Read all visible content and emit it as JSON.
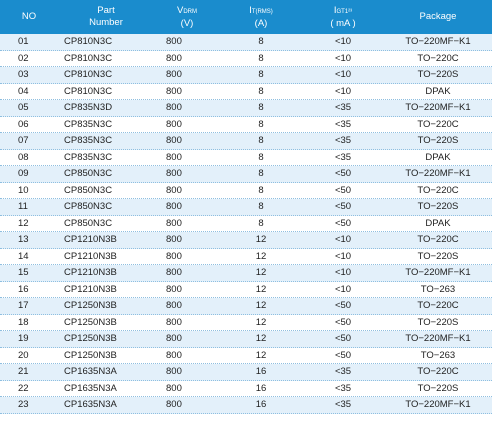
{
  "colors": {
    "header_bg": "#1a8ccd",
    "header_text": "#ffffff",
    "alt_row_bg": "#e3f0fa",
    "divider": "#8fbfe0"
  },
  "header": {
    "no": "NO",
    "part_line1": "Part",
    "part_line2": "Number",
    "vdrm_main": "V",
    "vdrm_sub": "DRM",
    "vdrm_unit": "(V)",
    "it_main": "I",
    "it_sub": "T(RMS)",
    "it_unit": "(A)",
    "igt_main": "I",
    "igt_sub": "GT1²³",
    "igt_unit": "( mA )",
    "package": "Package"
  },
  "rows": [
    {
      "no": "01",
      "part": "CP810N3C",
      "vdrm": "800",
      "it": "8",
      "igt": "<10",
      "pkg": "TO−220MF−K1"
    },
    {
      "no": "02",
      "part": "CP810N3C",
      "vdrm": "800",
      "it": "8",
      "igt": "<10",
      "pkg": "TO−220C"
    },
    {
      "no": "03",
      "part": "CP810N3C",
      "vdrm": "800",
      "it": "8",
      "igt": "<10",
      "pkg": "TO−220S"
    },
    {
      "no": "04",
      "part": "CP810N3C",
      "vdrm": "800",
      "it": "8",
      "igt": "<10",
      "pkg": "DPAK"
    },
    {
      "no": "05",
      "part": "CP835N3D",
      "vdrm": "800",
      "it": "8",
      "igt": "<35",
      "pkg": "TO−220MF−K1"
    },
    {
      "no": "06",
      "part": "CP835N3C",
      "vdrm": "800",
      "it": "8",
      "igt": "<35",
      "pkg": "TO−220C"
    },
    {
      "no": "07",
      "part": "CP835N3C",
      "vdrm": "800",
      "it": "8",
      "igt": "<35",
      "pkg": "TO−220S"
    },
    {
      "no": "08",
      "part": "CP835N3C",
      "vdrm": "800",
      "it": "8",
      "igt": "<35",
      "pkg": "DPAK"
    },
    {
      "no": "09",
      "part": "CP850N3C",
      "vdrm": "800",
      "it": "8",
      "igt": "<50",
      "pkg": "TO−220MF−K1"
    },
    {
      "no": "10",
      "part": "CP850N3C",
      "vdrm": "800",
      "it": "8",
      "igt": "<50",
      "pkg": "TO−220C"
    },
    {
      "no": "11",
      "part": "CP850N3C",
      "vdrm": "800",
      "it": "8",
      "igt": "<50",
      "pkg": "TO−220S"
    },
    {
      "no": "12",
      "part": "CP850N3C",
      "vdrm": "800",
      "it": "8",
      "igt": "<50",
      "pkg": "DPAK"
    },
    {
      "no": "13",
      "part": "CP1210N3B",
      "vdrm": "800",
      "it": "12",
      "igt": "<10",
      "pkg": "TO−220C"
    },
    {
      "no": "14",
      "part": "CP1210N3B",
      "vdrm": "800",
      "it": "12",
      "igt": "<10",
      "pkg": "TO−220S"
    },
    {
      "no": "15",
      "part": "CP1210N3B",
      "vdrm": "800",
      "it": "12",
      "igt": "<10",
      "pkg": "TO−220MF−K1"
    },
    {
      "no": "16",
      "part": "CP1210N3B",
      "vdrm": "800",
      "it": "12",
      "igt": "<10",
      "pkg": "TO−263"
    },
    {
      "no": "17",
      "part": "CP1250N3B",
      "vdrm": "800",
      "it": "12",
      "igt": "<50",
      "pkg": "TO−220C"
    },
    {
      "no": "18",
      "part": "CP1250N3B",
      "vdrm": "800",
      "it": "12",
      "igt": "<50",
      "pkg": "TO−220S"
    },
    {
      "no": "19",
      "part": "CP1250N3B",
      "vdrm": "800",
      "it": "12",
      "igt": "<50",
      "pkg": "TO−220MF−K1"
    },
    {
      "no": "20",
      "part": "CP1250N3B",
      "vdrm": "800",
      "it": "12",
      "igt": "<50",
      "pkg": "TO−263"
    },
    {
      "no": "21",
      "part": "CP1635N3A",
      "vdrm": "800",
      "it": "16",
      "igt": "<35",
      "pkg": "TO−220C"
    },
    {
      "no": "22",
      "part": "CP1635N3A",
      "vdrm": "800",
      "it": "16",
      "igt": "<35",
      "pkg": "TO−220S"
    },
    {
      "no": "23",
      "part": "CP1635N3A",
      "vdrm": "800",
      "it": "16",
      "igt": "<35",
      "pkg": "TO−220MF−K1"
    }
  ]
}
